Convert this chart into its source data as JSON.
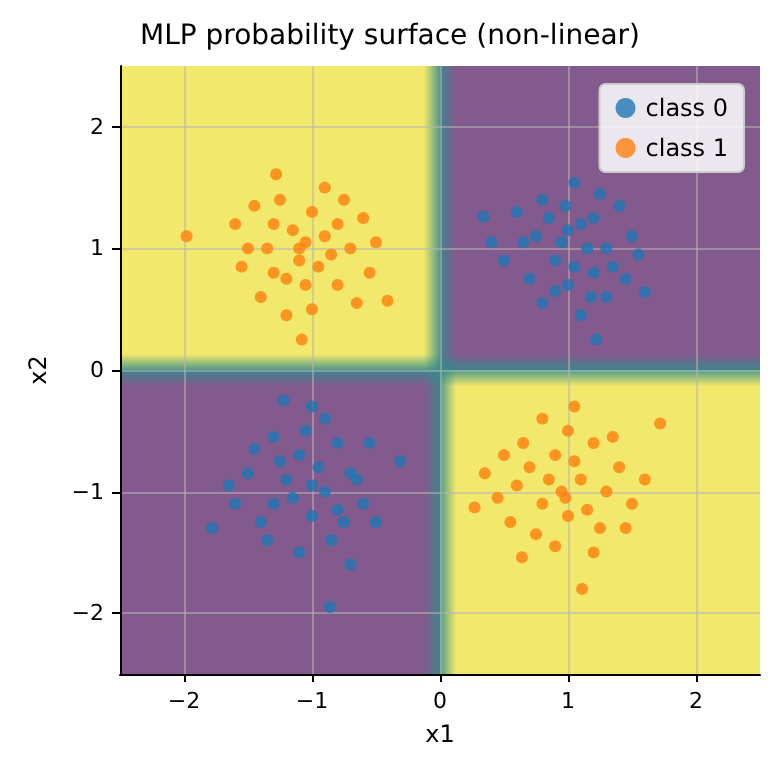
{
  "chart_data": {
    "type": "scatter",
    "title": "MLP probability surface (non-linear)",
    "xlabel": "x1",
    "ylabel": "x2",
    "xlim": [
      -2.5,
      2.5
    ],
    "ylim": [
      -2.5,
      2.5
    ],
    "xticks": [
      {
        "value": -2,
        "label": "−2"
      },
      {
        "value": -1,
        "label": "−1"
      },
      0,
      1,
      2
    ],
    "yticks": [
      {
        "value": -2,
        "label": "−2"
      },
      {
        "value": -1,
        "label": "−1"
      },
      0,
      1,
      2
    ],
    "grid": true,
    "legend": "top right",
    "marker": "circle",
    "series": [
      {
        "name": "class 0",
        "color": "#1f77b4",
        "x": [
          0.34,
          1.22,
          1.6,
          1.05,
          0.6,
          0.75,
          0.9,
          1.1,
          1.3,
          1.0,
          0.8,
          1.4,
          1.2,
          0.95,
          1.15,
          1.05,
          0.85,
          1.3,
          0.5,
          1.5,
          0.7,
          1.25,
          0.98,
          1.35,
          0.65,
          1.1,
          1.45,
          0.9,
          1.2,
          1.0,
          0.4,
          1.55,
          0.8,
          1.18,
          -1.22,
          -1.78,
          -0.86,
          -0.31,
          -1.5,
          -1.3,
          -1.1,
          -0.9,
          -0.7,
          -1.0,
          -1.2,
          -0.8,
          -0.6,
          -1.05,
          -1.4,
          -0.95,
          -1.15,
          -0.75,
          -1.6,
          -0.55,
          -1.3,
          -0.85,
          -1.0,
          -1.25,
          -0.65,
          -1.45,
          -0.9,
          -1.1,
          -0.5,
          -1.35,
          -0.7,
          -1.65,
          -0.8,
          -1.0
        ],
        "values": [
          1.26,
          0.25,
          0.64,
          1.54,
          1.3,
          1.1,
          0.9,
          1.2,
          1.0,
          0.7,
          0.55,
          1.35,
          0.8,
          1.05,
          1.0,
          0.85,
          1.25,
          0.6,
          0.9,
          1.1,
          0.75,
          1.45,
          1.35,
          0.85,
          1.05,
          0.45,
          0.75,
          0.65,
          1.25,
          1.15,
          1.05,
          0.95,
          1.4,
          0.6,
          -0.25,
          -1.3,
          -1.95,
          -0.75,
          -0.85,
          -1.1,
          -0.7,
          -1.0,
          -0.85,
          -1.2,
          -0.9,
          -0.6,
          -1.1,
          -0.5,
          -1.25,
          -0.8,
          -1.05,
          -1.25,
          -1.1,
          -0.6,
          -0.55,
          -1.4,
          -0.95,
          -0.75,
          -0.9,
          -0.65,
          -0.4,
          -1.5,
          -1.25,
          -1.4,
          -1.6,
          -0.95,
          -1.15,
          -0.3
        ]
      },
      {
        "name": "class 1",
        "color": "#ff7f0e",
        "x": [
          -1.98,
          -1.28,
          -1.08,
          -0.41,
          -1.5,
          -1.3,
          -1.1,
          -0.9,
          -0.7,
          -1.0,
          -1.2,
          -0.8,
          -1.4,
          -0.6,
          -1.05,
          -0.95,
          -1.25,
          -1.55,
          -0.75,
          -1.15,
          -0.85,
          -1.35,
          -1.0,
          -0.55,
          -1.6,
          -1.2,
          -0.65,
          -1.45,
          -0.9,
          -1.1,
          -0.8,
          -1.3,
          -0.5,
          -1.05,
          1.05,
          1.72,
          0.27,
          1.11,
          0.64,
          0.7,
          0.9,
          1.1,
          1.3,
          0.8,
          1.0,
          0.6,
          1.2,
          0.95,
          0.85,
          1.4,
          0.5,
          1.25,
          0.75,
          1.0,
          1.5,
          0.45,
          1.15,
          0.9,
          1.35,
          0.65,
          1.05,
          0.55,
          1.45,
          0.8,
          1.2,
          0.35,
          1.6,
          0.98
        ],
        "values": [
          1.1,
          1.61,
          0.25,
          0.57,
          1.0,
          1.2,
          0.9,
          1.1,
          1.0,
          1.3,
          0.75,
          0.7,
          0.6,
          1.25,
          1.05,
          0.85,
          1.4,
          0.85,
          1.4,
          1.15,
          0.95,
          1.0,
          0.5,
          0.8,
          1.2,
          0.45,
          0.55,
          1.35,
          1.5,
          1.0,
          1.2,
          0.8,
          1.05,
          0.7,
          -0.3,
          -0.44,
          -1.13,
          -1.8,
          -1.54,
          -0.8,
          -0.7,
          -0.9,
          -1.0,
          -1.1,
          -1.2,
          -0.95,
          -0.6,
          -1.0,
          -0.9,
          -0.8,
          -0.7,
          -1.3,
          -1.35,
          -0.5,
          -1.1,
          -1.05,
          -1.15,
          -1.45,
          -0.55,
          -0.6,
          -0.75,
          -1.25,
          -1.3,
          -0.4,
          -1.5,
          -0.85,
          -0.9,
          -1.05
        ]
      }
    ]
  }
}
